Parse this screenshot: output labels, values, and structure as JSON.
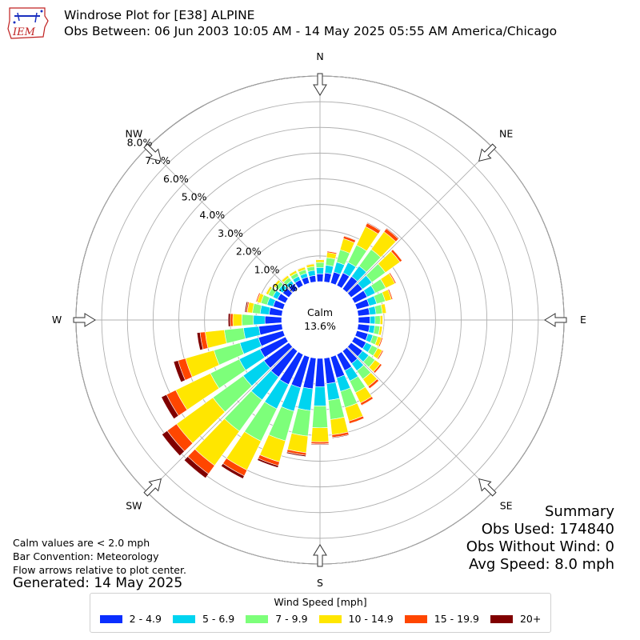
{
  "header": {
    "logo_text": "IEM",
    "title": "Windrose Plot for [E38] ALPINE",
    "subtitle": "Obs Between: 06 Jun 2003 10:05 AM - 14 May 2025 05:55 AM America/Chicago"
  },
  "notes": {
    "calm_note": "Calm values are < 2.0 mph",
    "bar_convention": "Bar Convention: Meteorology",
    "flow_note": "Flow arrows relative to plot center.",
    "generated": "Generated: 14 May 2025"
  },
  "summary": {
    "heading": "Summary",
    "obs_used": "Obs Used: 174840",
    "obs_without_wind": "Obs Without Wind: 0",
    "avg_speed": "Avg Speed: 8.0 mph"
  },
  "legend": {
    "title": "Wind Speed [mph]",
    "items": [
      {
        "label": "2 - 4.9",
        "color": "#0a2eff"
      },
      {
        "label": "5 - 6.9",
        "color": "#00d4f0"
      },
      {
        "label": "7 - 9.9",
        "color": "#7dff7a"
      },
      {
        "label": "10 - 14.9",
        "color": "#ffe600"
      },
      {
        "label": "15 - 19.9",
        "color": "#ff4600"
      },
      {
        "label": "20+",
        "color": "#800000"
      }
    ]
  },
  "chart_data": {
    "type": "windrose",
    "calm_label": "Calm",
    "calm_value": "13.6%",
    "directions": [
      "N",
      "NE",
      "E",
      "SE",
      "S",
      "SW",
      "W",
      "NW"
    ],
    "radial_labels": [
      "0.0%",
      "1.0%",
      "2.0%",
      "3.0%",
      "4.0%",
      "5.0%",
      "6.0%",
      "7.0%",
      "8.0%"
    ],
    "radial_max_percent": 8.0,
    "bin_width_deg": 10,
    "bins_deg": [
      0,
      10,
      20,
      30,
      40,
      50,
      60,
      70,
      80,
      90,
      100,
      110,
      120,
      130,
      140,
      150,
      160,
      170,
      180,
      190,
      200,
      210,
      220,
      230,
      240,
      250,
      260,
      270,
      280,
      290,
      300,
      310,
      320,
      330,
      340,
      350
    ],
    "speed_bins": [
      "2 - 4.9",
      "5 - 6.9",
      "7 - 9.9",
      "10 - 14.9",
      "15 - 19.9",
      "20+"
    ],
    "series": [
      {
        "name": "2 - 4.9",
        "values": [
          0.3,
          0.35,
          0.45,
          0.55,
          0.6,
          0.55,
          0.55,
          0.5,
          0.45,
          0.45,
          0.45,
          0.45,
          0.5,
          0.55,
          0.6,
          0.7,
          0.85,
          1.0,
          1.1,
          1.2,
          1.25,
          1.3,
          1.25,
          1.2,
          1.1,
          1.0,
          0.9,
          0.65,
          0.5,
          0.4,
          0.35,
          0.3,
          0.25,
          0.25,
          0.25,
          0.25
        ]
      },
      {
        "name": "5 - 6.9",
        "values": [
          0.25,
          0.3,
          0.4,
          0.45,
          0.5,
          0.45,
          0.35,
          0.3,
          0.25,
          0.2,
          0.2,
          0.2,
          0.25,
          0.3,
          0.35,
          0.45,
          0.55,
          0.65,
          0.75,
          0.85,
          0.95,
          1.05,
          1.1,
          1.0,
          0.9,
          0.75,
          0.6,
          0.45,
          0.35,
          0.25,
          0.2,
          0.2,
          0.15,
          0.15,
          0.15,
          0.2
        ]
      },
      {
        "name": "7 - 9.9",
        "values": [
          0.2,
          0.3,
          0.5,
          0.75,
          0.8,
          0.65,
          0.45,
          0.35,
          0.25,
          0.2,
          0.2,
          0.2,
          0.25,
          0.3,
          0.4,
          0.5,
          0.65,
          0.75,
          0.85,
          1.0,
          1.2,
          1.4,
          1.5,
          1.45,
          1.25,
          1.05,
          0.75,
          0.45,
          0.3,
          0.25,
          0.2,
          0.15,
          0.15,
          0.15,
          0.15,
          0.15
        ]
      },
      {
        "name": "10 - 14.9",
        "values": [
          0.1,
          0.2,
          0.45,
          0.8,
          0.85,
          0.7,
          0.4,
          0.25,
          0.15,
          0.1,
          0.1,
          0.15,
          0.2,
          0.25,
          0.35,
          0.45,
          0.55,
          0.6,
          0.55,
          0.65,
          0.85,
          1.25,
          1.65,
          1.75,
          1.5,
          1.15,
          0.75,
          0.35,
          0.2,
          0.15,
          0.1,
          0.1,
          0.1,
          0.1,
          0.1,
          0.1
        ]
      },
      {
        "name": "15 - 19.9",
        "values": [
          0.02,
          0.05,
          0.1,
          0.15,
          0.15,
          0.1,
          0.05,
          0.05,
          0.02,
          0.02,
          0.02,
          0.05,
          0.05,
          0.08,
          0.1,
          0.1,
          0.1,
          0.1,
          0.08,
          0.1,
          0.15,
          0.25,
          0.4,
          0.45,
          0.4,
          0.3,
          0.2,
          0.1,
          0.05,
          0.05,
          0.02,
          0.02,
          0.02,
          0.02,
          0.02,
          0.02
        ]
      },
      {
        "name": "20+",
        "values": [
          0.01,
          0.02,
          0.02,
          0.03,
          0.03,
          0.02,
          0.01,
          0.01,
          0.01,
          0.01,
          0.01,
          0.01,
          0.02,
          0.02,
          0.02,
          0.02,
          0.02,
          0.03,
          0.03,
          0.05,
          0.08,
          0.12,
          0.2,
          0.25,
          0.22,
          0.18,
          0.12,
          0.08,
          0.05,
          0.02,
          0.02,
          0.01,
          0.01,
          0.01,
          0.01,
          0.01
        ]
      }
    ]
  }
}
